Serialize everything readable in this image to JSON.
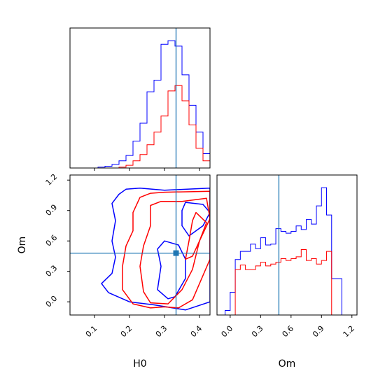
{
  "chart_data": [
    {
      "panel": "H0 marginal",
      "type": "histogram",
      "xlim": [
        0.03,
        0.43
      ],
      "truth": 0.333,
      "bins": [
        0.03,
        0.05,
        0.07,
        0.09,
        0.11,
        0.13,
        0.15,
        0.17,
        0.19,
        0.21,
        0.23,
        0.25,
        0.27,
        0.29,
        0.31,
        0.33,
        0.35,
        0.37,
        0.39,
        0.41,
        0.43
      ],
      "series": [
        {
          "color": "#0000ff",
          "counts": [
            0,
            0,
            0,
            0,
            1,
            2,
            4,
            8,
            14,
            30,
            50,
            85,
            98,
            138,
            142,
            136,
            104,
            70,
            40,
            16,
            1
          ]
        },
        {
          "color": "#ff0000",
          "counts": [
            0,
            0,
            0,
            0,
            0,
            0,
            0,
            1,
            3,
            8,
            15,
            26,
            40,
            58,
            86,
            92,
            75,
            48,
            22,
            8,
            1
          ]
        }
      ],
      "ticks": [
        "0.1",
        "0.2",
        "0.3",
        "0.4"
      ]
    },
    {
      "panel": "H0 vs Om",
      "type": "contour",
      "xlabel": "H0",
      "ylabel": "Om",
      "xlim": [
        0.03,
        0.43
      ],
      "ylim": [
        -0.13,
        1.25
      ],
      "truth": {
        "x": 0.333,
        "y": 0.48
      },
      "xticks": [
        "0.1",
        "0.2",
        "0.3",
        "0.4"
      ],
      "yticks": [
        "0.0",
        "0.3",
        "0.6",
        "0.9",
        "1.2"
      ],
      "contours": [
        {
          "color": "#0000ff",
          "points": [
            [
              0.19,
              1.11
            ],
            [
              0.23,
              1.12
            ],
            [
              0.3,
              1.1
            ],
            [
              0.43,
              1.12
            ],
            [
              0.43,
              0.0
            ],
            [
              0.36,
              -0.08
            ],
            [
              0.27,
              -0.03
            ],
            [
              0.2,
              0.0
            ],
            [
              0.14,
              0.09
            ],
            [
              0.12,
              0.18
            ],
            [
              0.15,
              0.28
            ],
            [
              0.16,
              0.44
            ],
            [
              0.15,
              0.6
            ],
            [
              0.16,
              0.8
            ],
            [
              0.15,
              0.97
            ],
            [
              0.17,
              1.06
            ],
            [
              0.19,
              1.11
            ]
          ]
        },
        {
          "color": "#0000ff",
          "points": [
            [
              0.3,
              0.6
            ],
            [
              0.34,
              0.56
            ],
            [
              0.36,
              0.42
            ],
            [
              0.36,
              0.23
            ],
            [
              0.33,
              0.05
            ],
            [
              0.31,
              0.03
            ],
            [
              0.28,
              0.12
            ],
            [
              0.29,
              0.35
            ],
            [
              0.28,
              0.52
            ],
            [
              0.3,
              0.6
            ]
          ]
        },
        {
          "color": "#0000ff",
          "points": [
            [
              0.36,
              0.98
            ],
            [
              0.41,
              0.96
            ],
            [
              0.43,
              0.88
            ],
            [
              0.41,
              0.75
            ],
            [
              0.37,
              0.65
            ],
            [
              0.35,
              0.75
            ],
            [
              0.35,
              0.9
            ],
            [
              0.36,
              0.98
            ]
          ]
        },
        {
          "color": "#ff0000",
          "points": [
            [
              0.23,
              1.03
            ],
            [
              0.26,
              1.07
            ],
            [
              0.3,
              1.08
            ],
            [
              0.43,
              1.09
            ],
            [
              0.43,
              0.42
            ],
            [
              0.38,
              0.02
            ],
            [
              0.34,
              -0.06
            ],
            [
              0.3,
              -0.05
            ],
            [
              0.26,
              -0.06
            ],
            [
              0.21,
              -0.02
            ],
            [
              0.18,
              0.12
            ],
            [
              0.18,
              0.35
            ],
            [
              0.19,
              0.55
            ],
            [
              0.21,
              0.7
            ],
            [
              0.21,
              0.88
            ],
            [
              0.23,
              1.03
            ]
          ]
        },
        {
          "color": "#ff0000",
          "points": [
            [
              0.26,
              0.95
            ],
            [
              0.29,
              0.99
            ],
            [
              0.35,
              0.99
            ],
            [
              0.42,
              1.02
            ],
            [
              0.43,
              0.82
            ],
            [
              0.4,
              0.6
            ],
            [
              0.38,
              0.32
            ],
            [
              0.35,
              0.12
            ],
            [
              0.31,
              -0.02
            ],
            [
              0.26,
              -0.01
            ],
            [
              0.24,
              0.1
            ],
            [
              0.23,
              0.35
            ],
            [
              0.24,
              0.55
            ],
            [
              0.26,
              0.75
            ],
            [
              0.26,
              0.95
            ]
          ]
        },
        {
          "color": "#ff0000",
          "points": [
            [
              0.39,
              0.88
            ],
            [
              0.42,
              0.78
            ],
            [
              0.4,
              0.6
            ],
            [
              0.38,
              0.45
            ],
            [
              0.36,
              0.42
            ],
            [
              0.37,
              0.6
            ],
            [
              0.38,
              0.8
            ],
            [
              0.39,
              0.88
            ]
          ]
        }
      ]
    },
    {
      "panel": "Om marginal",
      "type": "histogram",
      "xlabel": "Om",
      "xlim": [
        -0.13,
        1.25
      ],
      "truth": 0.48,
      "bins": [
        -0.05,
        0.0,
        0.05,
        0.1,
        0.15,
        0.2,
        0.25,
        0.3,
        0.35,
        0.4,
        0.45,
        0.5,
        0.55,
        0.6,
        0.65,
        0.7,
        0.75,
        0.8,
        0.85,
        0.9,
        0.95,
        1.0,
        1.05,
        1.1,
        1.15
      ],
      "series": [
        {
          "color": "#0000ff",
          "counts": [
            5,
            25,
            61,
            70,
            70,
            78,
            73,
            85,
            77,
            78,
            95,
            92,
            90,
            92,
            98,
            94,
            105,
            100,
            120,
            140,
            110,
            40,
            40,
            0
          ]
        },
        {
          "color": "#ff0000",
          "counts": [
            0,
            0,
            50,
            55,
            50,
            50,
            54,
            58,
            54,
            56,
            58,
            62,
            60,
            62,
            64,
            72,
            60,
            62,
            56,
            60,
            70,
            0,
            0,
            0
          ]
        }
      ],
      "ticks": [
        "0.0",
        "0.3",
        "0.6",
        "0.9",
        "1.2"
      ]
    }
  ]
}
